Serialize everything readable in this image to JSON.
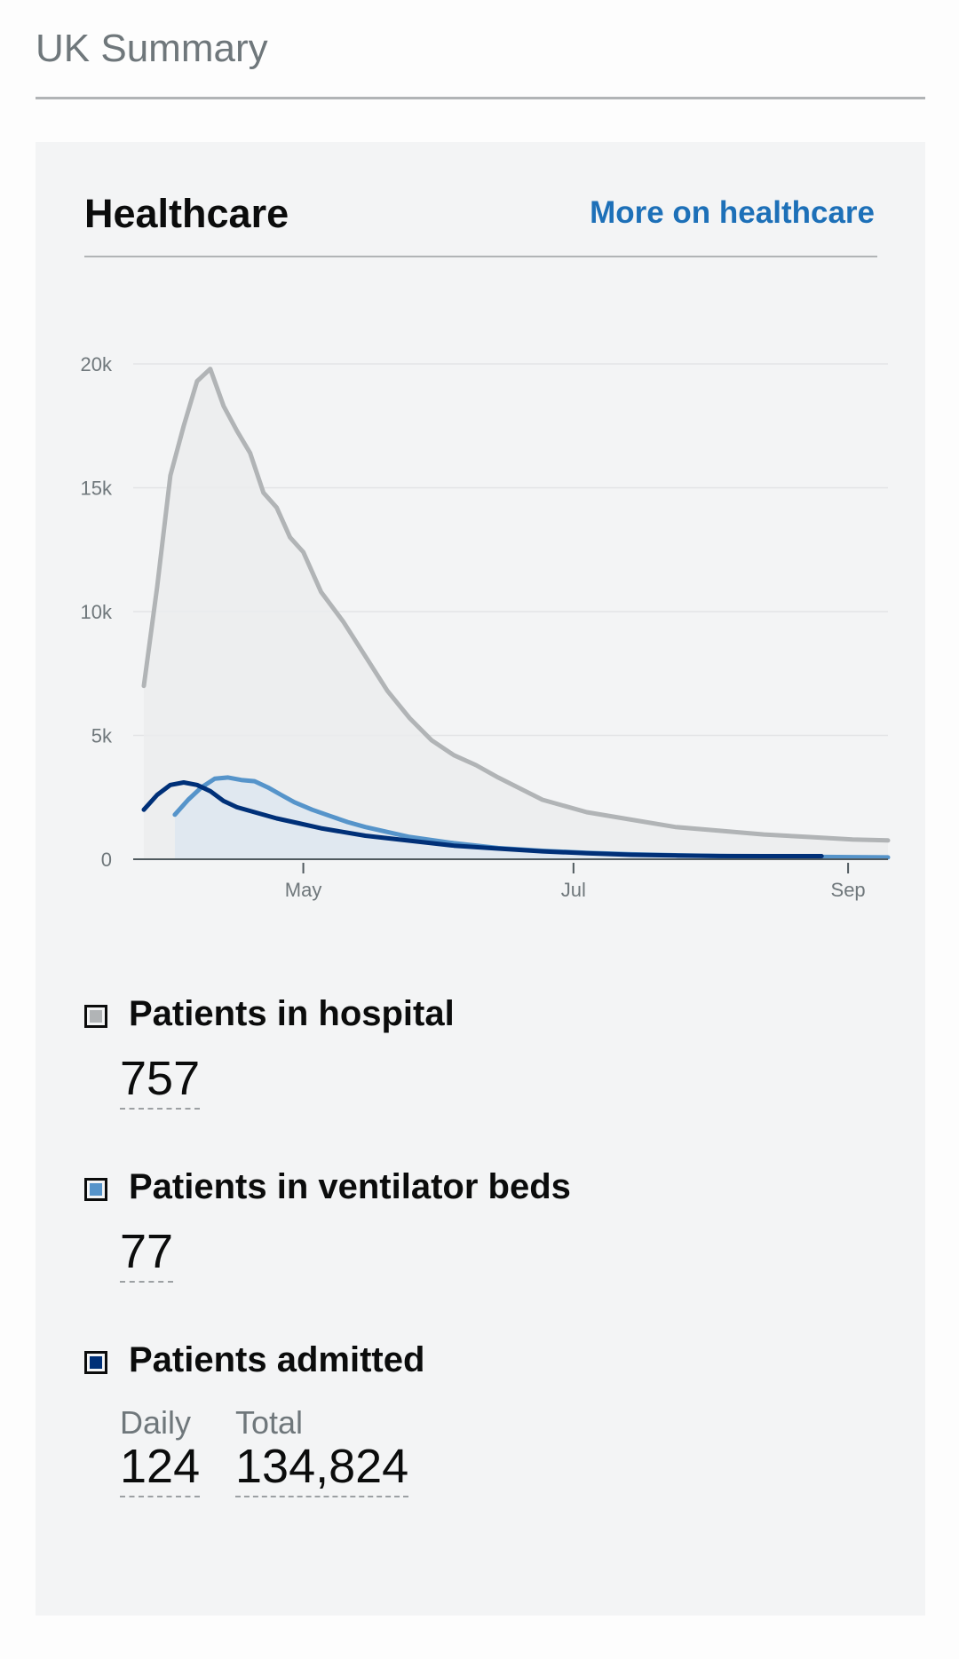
{
  "page": {
    "title": "UK Summary"
  },
  "card": {
    "title": "Healthcare",
    "link_label": "More on healthcare"
  },
  "chart_data": {
    "type": "area",
    "title": "",
    "xlabel": "",
    "ylabel": "",
    "ylim": [
      0,
      20000
    ],
    "x_range_days": [
      0,
      168
    ],
    "y_ticks": [
      {
        "value": 0,
        "label": "0"
      },
      {
        "value": 5000,
        "label": "5k"
      },
      {
        "value": 10000,
        "label": "10k"
      },
      {
        "value": 15000,
        "label": "15k"
      },
      {
        "value": 20000,
        "label": "20k"
      }
    ],
    "x_ticks": [
      {
        "day": 36,
        "label": "May"
      },
      {
        "day": 97,
        "label": "Jul"
      },
      {
        "day": 159,
        "label": "Sep"
      }
    ],
    "series": [
      {
        "name": "Patients in hospital",
        "color": "#b1b4b6",
        "fill": "#ebeced",
        "x": [
          0,
          3,
          6,
          9,
          12,
          15,
          18,
          21,
          24,
          27,
          30,
          33,
          36,
          40,
          45,
          50,
          55,
          60,
          65,
          70,
          75,
          80,
          90,
          100,
          110,
          120,
          130,
          140,
          150,
          160,
          168
        ],
        "y": [
          7000,
          11000,
          15500,
          17500,
          19300,
          19800,
          18300,
          17300,
          16400,
          14800,
          14200,
          13000,
          12400,
          10800,
          9600,
          8200,
          6800,
          5700,
          4800,
          4200,
          3800,
          3300,
          2400,
          1900,
          1600,
          1300,
          1150,
          1000,
          900,
          800,
          760
        ]
      },
      {
        "name": "Patients in ventilator beds",
        "color": "#5694ca",
        "fill": "#dde6f0",
        "x": [
          7,
          10,
          13,
          16,
          19,
          22,
          25,
          28,
          31,
          34,
          38,
          42,
          46,
          50,
          55,
          60,
          70,
          80,
          90,
          100,
          110,
          120,
          130,
          140,
          150,
          160,
          168
        ],
        "y": [
          1800,
          2400,
          2900,
          3250,
          3300,
          3200,
          3150,
          2900,
          2600,
          2300,
          2000,
          1750,
          1500,
          1300,
          1100,
          900,
          650,
          450,
          340,
          260,
          200,
          160,
          130,
          110,
          95,
          85,
          77
        ]
      },
      {
        "name": "Patients admitted",
        "color": "#003078",
        "fill": "none",
        "x": [
          0,
          3,
          6,
          9,
          12,
          15,
          18,
          21,
          25,
          30,
          35,
          40,
          45,
          50,
          60,
          70,
          80,
          90,
          100,
          110,
          120,
          130,
          140,
          150,
          153
        ],
        "y": [
          2000,
          2600,
          3000,
          3100,
          3000,
          2750,
          2350,
          2100,
          1900,
          1650,
          1450,
          1250,
          1100,
          950,
          750,
          550,
          430,
          320,
          240,
          180,
          150,
          130,
          125,
          124,
          124
        ]
      }
    ]
  },
  "metrics": {
    "hospital": {
      "label": "Patients in hospital",
      "value": "757",
      "color": "#b1b4b6"
    },
    "ventilator": {
      "label": "Patients in ventilator beds",
      "value": "77",
      "color": "#5694ca"
    },
    "admitted": {
      "label": "Patients admitted",
      "color": "#003078",
      "daily_label": "Daily",
      "daily_value": "124",
      "total_label": "Total",
      "total_value": "134,824"
    }
  }
}
